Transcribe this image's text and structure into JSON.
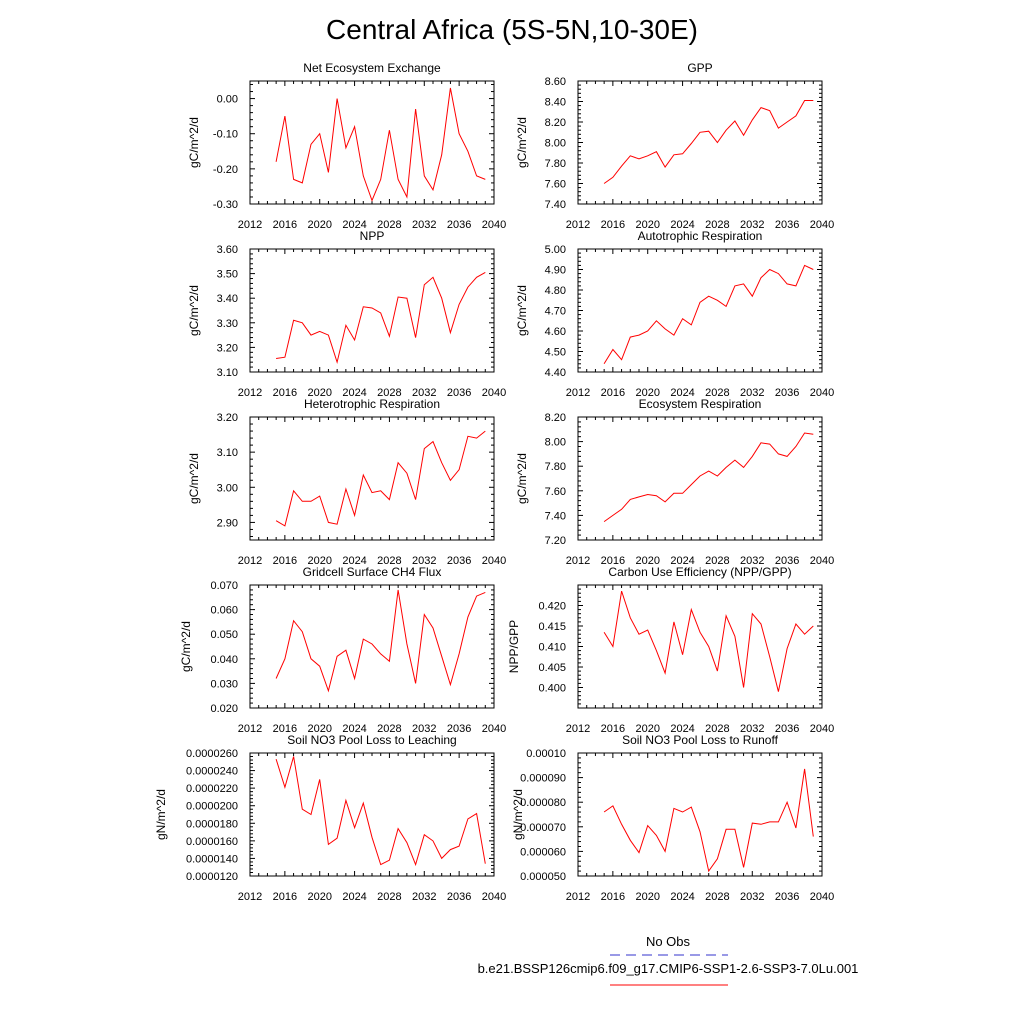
{
  "figure": {
    "title": "Central Africa (5S-5N,10-30E)",
    "legend": [
      {
        "label": "No Obs",
        "color": "#3333cc",
        "dash": true
      },
      {
        "label": "b.e21.BSSP126cmip6.f09_g17.CMIP6-SSP1-2.6-SSP3-7.0Lu.001",
        "color": "#ff0000",
        "dash": false
      }
    ]
  },
  "chart_data": [
    {
      "type": "line",
      "title": "Net Ecosystem Exchange",
      "ylabel": "gC/m^2/d",
      "xlim": [
        2012,
        2040
      ],
      "ylim": [
        -0.3,
        0.05
      ],
      "xticks": [
        "2012",
        "2016",
        "2020",
        "2024",
        "2028",
        "2032",
        "2036",
        "2040"
      ],
      "yticks": [
        "0.00",
        "-0.10",
        "-0.20",
        "-0.30"
      ],
      "series": [
        {
          "color": "#ff0000",
          "x": [
            2015,
            2016,
            2017,
            2018,
            2019,
            2020,
            2021,
            2022,
            2023,
            2024,
            2025,
            2026,
            2027,
            2028,
            2029,
            2030,
            2031,
            2032,
            2033,
            2034,
            2035,
            2036,
            2037,
            2038,
            2039
          ],
          "y": [
            -0.18,
            -0.05,
            -0.23,
            -0.24,
            -0.13,
            -0.1,
            -0.21,
            0.0,
            -0.14,
            -0.08,
            -0.22,
            -0.29,
            -0.23,
            -0.09,
            -0.23,
            -0.28,
            -0.03,
            -0.22,
            -0.26,
            -0.16,
            0.03,
            -0.1,
            -0.15,
            -0.22,
            -0.23
          ]
        }
      ]
    },
    {
      "type": "line",
      "title": "GPP",
      "ylabel": "gC/m^2/d",
      "xlim": [
        2012,
        2040
      ],
      "ylim": [
        7.4,
        8.6
      ],
      "xticks": [
        "2012",
        "2016",
        "2020",
        "2024",
        "2028",
        "2032",
        "2036",
        "2040"
      ],
      "yticks": [
        "8.60",
        "8.40",
        "8.20",
        "8.00",
        "7.80",
        "7.60",
        "7.40"
      ],
      "series": [
        {
          "color": "#ff0000",
          "x": [
            2015,
            2016,
            2017,
            2018,
            2019,
            2020,
            2021,
            2022,
            2023,
            2024,
            2025,
            2026,
            2027,
            2028,
            2029,
            2030,
            2031,
            2032,
            2033,
            2034,
            2035,
            2036,
            2037,
            2038,
            2039
          ],
          "y": [
            7.6,
            7.66,
            7.77,
            7.87,
            7.84,
            7.87,
            7.91,
            7.76,
            7.88,
            7.89,
            7.99,
            8.1,
            8.11,
            8.0,
            8.12,
            8.21,
            8.07,
            8.22,
            8.34,
            8.31,
            8.14,
            8.2,
            8.26,
            8.41,
            8.41
          ]
        }
      ]
    },
    {
      "type": "line",
      "title": "NPP",
      "ylabel": "gC/m^2/d",
      "xlim": [
        2012,
        2040
      ],
      "ylim": [
        3.1,
        3.6
      ],
      "xticks": [
        "2012",
        "2016",
        "2020",
        "2024",
        "2028",
        "2032",
        "2036",
        "2040"
      ],
      "yticks": [
        "3.60",
        "3.50",
        "3.40",
        "3.30",
        "3.20",
        "3.10"
      ],
      "series": [
        {
          "color": "#ff0000",
          "x": [
            2015,
            2016,
            2017,
            2018,
            2019,
            2020,
            2021,
            2022,
            2023,
            2024,
            2025,
            2026,
            2027,
            2028,
            2029,
            2030,
            2031,
            2032,
            2033,
            2034,
            2035,
            2036,
            2037,
            2038,
            2039
          ],
          "y": [
            3.155,
            3.16,
            3.31,
            3.3,
            3.25,
            3.265,
            3.25,
            3.14,
            3.29,
            3.23,
            3.365,
            3.36,
            3.34,
            3.245,
            3.405,
            3.4,
            3.24,
            3.455,
            3.485,
            3.4,
            3.26,
            3.375,
            3.445,
            3.485,
            3.505
          ]
        }
      ]
    },
    {
      "type": "line",
      "title": "Autotrophic Respiration",
      "ylabel": "gC/m^2/d",
      "xlim": [
        2012,
        2040
      ],
      "ylim": [
        4.4,
        5.0
      ],
      "xticks": [
        "2012",
        "2016",
        "2020",
        "2024",
        "2028",
        "2032",
        "2036",
        "2040"
      ],
      "yticks": [
        "5.00",
        "4.90",
        "4.80",
        "4.70",
        "4.60",
        "4.50",
        "4.40"
      ],
      "series": [
        {
          "color": "#ff0000",
          "x": [
            2015,
            2016,
            2017,
            2018,
            2019,
            2020,
            2021,
            2022,
            2023,
            2024,
            2025,
            2026,
            2027,
            2028,
            2029,
            2030,
            2031,
            2032,
            2033,
            2034,
            2035,
            2036,
            2037,
            2038,
            2039
          ],
          "y": [
            4.44,
            4.51,
            4.46,
            4.57,
            4.58,
            4.6,
            4.65,
            4.61,
            4.58,
            4.66,
            4.63,
            4.74,
            4.77,
            4.75,
            4.72,
            4.82,
            4.83,
            4.77,
            4.86,
            4.9,
            4.88,
            4.83,
            4.82,
            4.92,
            4.9
          ]
        }
      ]
    },
    {
      "type": "line",
      "title": "Heterotrophic Respiration",
      "ylabel": "gC/m^2/d",
      "xlim": [
        2012,
        2040
      ],
      "ylim": [
        2.85,
        3.2
      ],
      "xticks": [
        "2012",
        "2016",
        "2020",
        "2024",
        "2028",
        "2032",
        "2036",
        "2040"
      ],
      "yticks": [
        "3.20",
        "3.10",
        "3.00",
        "2.90"
      ],
      "series": [
        {
          "color": "#ff0000",
          "x": [
            2015,
            2016,
            2017,
            2018,
            2019,
            2020,
            2021,
            2022,
            2023,
            2024,
            2025,
            2026,
            2027,
            2028,
            2029,
            2030,
            2031,
            2032,
            2033,
            2034,
            2035,
            2036,
            2037,
            2038,
            2039
          ],
          "y": [
            2.905,
            2.89,
            2.99,
            2.96,
            2.96,
            2.975,
            2.9,
            2.895,
            2.995,
            2.92,
            3.035,
            2.985,
            2.99,
            2.965,
            3.07,
            3.04,
            2.965,
            3.11,
            3.13,
            3.07,
            3.02,
            3.05,
            3.145,
            3.14,
            3.16
          ]
        }
      ]
    },
    {
      "type": "line",
      "title": "Ecosystem Respiration",
      "ylabel": "gC/m^2/d",
      "xlim": [
        2012,
        2040
      ],
      "ylim": [
        7.2,
        8.2
      ],
      "xticks": [
        "2012",
        "2016",
        "2020",
        "2024",
        "2028",
        "2032",
        "2036",
        "2040"
      ],
      "yticks": [
        "8.20",
        "8.00",
        "7.80",
        "7.60",
        "7.40",
        "7.20"
      ],
      "series": [
        {
          "color": "#ff0000",
          "x": [
            2015,
            2016,
            2017,
            2018,
            2019,
            2020,
            2021,
            2022,
            2023,
            2024,
            2025,
            2026,
            2027,
            2028,
            2029,
            2030,
            2031,
            2032,
            2033,
            2034,
            2035,
            2036,
            2037,
            2038,
            2039
          ],
          "y": [
            7.35,
            7.4,
            7.45,
            7.53,
            7.55,
            7.57,
            7.56,
            7.51,
            7.58,
            7.58,
            7.65,
            7.72,
            7.76,
            7.72,
            7.79,
            7.85,
            7.79,
            7.88,
            7.99,
            7.98,
            7.9,
            7.88,
            7.96,
            8.07,
            8.06
          ]
        }
      ]
    },
    {
      "type": "line",
      "title": "Gridcell Surface CH4 Flux",
      "ylabel": "gC/m^2/d",
      "xlim": [
        2012,
        2040
      ],
      "ylim": [
        0.02,
        0.07
      ],
      "xticks": [
        "2012",
        "2016",
        "2020",
        "2024",
        "2028",
        "2032",
        "2036",
        "2040"
      ],
      "yticks": [
        "0.070",
        "0.060",
        "0.050",
        "0.040",
        "0.030",
        "0.020"
      ],
      "series": [
        {
          "color": "#ff0000",
          "x": [
            2015,
            2016,
            2017,
            2018,
            2019,
            2020,
            2021,
            2022,
            2023,
            2024,
            2025,
            2026,
            2027,
            2028,
            2029,
            2030,
            2031,
            2032,
            2033,
            2034,
            2035,
            2036,
            2037,
            2038,
            2039
          ],
          "y": [
            0.032,
            0.04,
            0.0555,
            0.051,
            0.04,
            0.037,
            0.027,
            0.041,
            0.0435,
            0.032,
            0.048,
            0.046,
            0.042,
            0.039,
            0.068,
            0.046,
            0.03,
            0.058,
            0.0525,
            0.041,
            0.0295,
            0.042,
            0.057,
            0.0655,
            0.067
          ]
        }
      ]
    },
    {
      "type": "line",
      "title": "Carbon Use Efficiency (NPP/GPP)",
      "ylabel": "NPP/GPP",
      "xlim": [
        2012,
        2040
      ],
      "ylim": [
        0.395,
        0.425
      ],
      "xticks": [
        "2012",
        "2016",
        "2020",
        "2024",
        "2028",
        "2032",
        "2036",
        "2040"
      ],
      "yticks": [
        "0.420",
        "0.415",
        "0.410",
        "0.405",
        "0.400"
      ],
      "series": [
        {
          "color": "#ff0000",
          "x": [
            2015,
            2016,
            2017,
            2018,
            2019,
            2020,
            2021,
            2022,
            2023,
            2024,
            2025,
            2026,
            2027,
            2028,
            2029,
            2030,
            2031,
            2032,
            2033,
            2034,
            2035,
            2036,
            2037,
            2038,
            2039
          ],
          "y": [
            0.4135,
            0.41,
            0.4235,
            0.417,
            0.413,
            0.414,
            0.409,
            0.4035,
            0.416,
            0.408,
            0.419,
            0.4135,
            0.41,
            0.404,
            0.4175,
            0.4125,
            0.4,
            0.418,
            0.4155,
            0.4075,
            0.399,
            0.4095,
            0.4155,
            0.413,
            0.415
          ]
        }
      ]
    },
    {
      "type": "line",
      "title": "Soil NO3 Pool Loss to Leaching",
      "ylabel": "gN/m^2/d",
      "xlim": [
        2012,
        2040
      ],
      "ylim": [
        1.2e-05,
        2.6e-05
      ],
      "xticks": [
        "2012",
        "2016",
        "2020",
        "2024",
        "2028",
        "2032",
        "2036",
        "2040"
      ],
      "yticks": [
        "0.0000260",
        "0.0000240",
        "0.0000220",
        "0.0000200",
        "0.0000180",
        "0.0000160",
        "0.0000140",
        "0.0000120"
      ],
      "series": [
        {
          "color": "#ff0000",
          "x": [
            2015,
            2016,
            2017,
            2018,
            2019,
            2020,
            2021,
            2022,
            2023,
            2024,
            2025,
            2026,
            2027,
            2028,
            2029,
            2030,
            2031,
            2032,
            2033,
            2034,
            2035,
            2036,
            2037,
            2038,
            2039
          ],
          "y": [
            2.53e-05,
            2.21e-05,
            2.56e-05,
            1.96e-05,
            1.9e-05,
            2.3e-05,
            1.56e-05,
            1.63e-05,
            2.06e-05,
            1.75e-05,
            2.03e-05,
            1.64e-05,
            1.33e-05,
            1.38e-05,
            1.74e-05,
            1.58e-05,
            1.33e-05,
            1.67e-05,
            1.6e-05,
            1.4e-05,
            1.5e-05,
            1.54e-05,
            1.85e-05,
            1.91e-05,
            1.34e-05
          ]
        }
      ]
    },
    {
      "type": "line",
      "title": "Soil NO3 Pool Loss to Runoff",
      "ylabel": "gN/m^2/d",
      "xlim": [
        2012,
        2040
      ],
      "ylim": [
        5e-05,
        0.0001
      ],
      "xticks": [
        "2012",
        "2016",
        "2020",
        "2024",
        "2028",
        "2032",
        "2036",
        "2040"
      ],
      "yticks": [
        "0.00010",
        "0.000090",
        "0.000080",
        "0.000070",
        "0.000060",
        "0.000050"
      ],
      "series": [
        {
          "color": "#ff0000",
          "x": [
            2015,
            2016,
            2017,
            2018,
            2019,
            2020,
            2021,
            2022,
            2023,
            2024,
            2025,
            2026,
            2027,
            2028,
            2029,
            2030,
            2031,
            2032,
            2033,
            2034,
            2035,
            2036,
            2037,
            2038,
            2039
          ],
          "y": [
            7.6e-05,
            7.85e-05,
            7.1e-05,
            6.45e-05,
            5.95e-05,
            7.05e-05,
            6.65e-05,
            6e-05,
            7.75e-05,
            7.6e-05,
            7.8e-05,
            6.8e-05,
            5.2e-05,
            5.7e-05,
            6.9e-05,
            6.9e-05,
            5.35e-05,
            7.15e-05,
            7.1e-05,
            7.2e-05,
            7.2e-05,
            8e-05,
            6.95e-05,
            9.35e-05,
            6.6e-05
          ]
        }
      ]
    }
  ]
}
